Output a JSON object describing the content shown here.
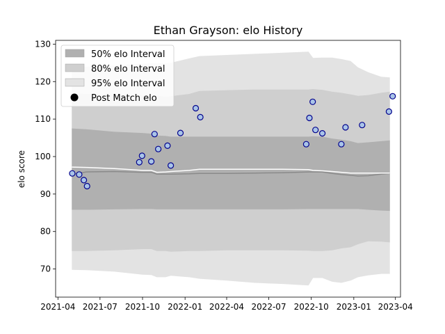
{
  "chart_data": {
    "type": "scatter",
    "title": "Ethan Grayson: elo History",
    "xlabel": "",
    "ylabel": "elo score",
    "xlim": [
      "2021-03-27",
      "2023-04-12"
    ],
    "ylim": [
      62.5,
      131
    ],
    "x_ticks": [
      "2021-04",
      "2021-07",
      "2021-10",
      "2022-01",
      "2022-04",
      "2022-07",
      "2022-10",
      "2023-01",
      "2023-04"
    ],
    "y_ticks": [
      70,
      80,
      90,
      100,
      110,
      120,
      130
    ],
    "grid": false,
    "legend_position": "top-left",
    "legend": [
      "50% elo Interval",
      "80% elo Interval",
      "95% elo Interval",
      "Post Match elo"
    ],
    "colors": {
      "band_50": "#b0b0b0",
      "band_80": "#cfcfcf",
      "band_95": "#e3e3e3",
      "mean_line": "#8a8a8a",
      "white_line": "#ffffff",
      "marker_face": "#a9c4e8",
      "marker_edge": "#00008b"
    },
    "interval_dates": [
      "2021-05-01",
      "2021-06-01",
      "2021-08-01",
      "2021-10-01",
      "2021-10-20",
      "2021-11-01",
      "2021-11-20",
      "2021-12-01",
      "2022-01-10",
      "2022-02-01",
      "2022-04-01",
      "2022-06-01",
      "2022-08-01",
      "2022-09-25",
      "2022-10-05",
      "2022-10-25",
      "2022-11-15",
      "2022-12-05",
      "2022-12-25",
      "2023-01-10",
      "2023-02-01",
      "2023-03-01",
      "2023-03-20"
    ],
    "mean": [
      95.2,
      95.9,
      96.0,
      95.8,
      95.8,
      95.3,
      95.3,
      95.3,
      95.4,
      95.5,
      95.5,
      95.6,
      95.7,
      95.9,
      95.9,
      95.9,
      95.5,
      95.2,
      95.0,
      94.8,
      94.9,
      95.3,
      95.5
    ],
    "white_line": [
      97.2,
      97.1,
      96.8,
      96.3,
      96.3,
      95.8,
      95.9,
      96.0,
      96.3,
      96.6,
      96.6,
      96.6,
      96.6,
      96.5,
      96.3,
      96.2,
      96.0,
      95.8,
      95.6,
      95.6,
      95.6,
      95.6,
      95.6
    ],
    "band_50": {
      "upper": [
        107.5,
        107.3,
        106.6,
        106.3,
        106.1,
        105.6,
        105.5,
        105.3,
        105.3,
        105.3,
        105.3,
        105.3,
        105.3,
        105.3,
        105.4,
        105.3,
        104.8,
        104.5,
        104.1,
        103.6,
        103.8,
        104.1,
        104.3
      ],
      "lower": [
        85.8,
        85.8,
        85.9,
        86.0,
        86.0,
        85.9,
        85.9,
        85.9,
        85.9,
        85.9,
        85.9,
        85.9,
        85.9,
        86.0,
        86.0,
        86.0,
        86.0,
        86.0,
        86.0,
        86.0,
        85.8,
        85.6,
        85.5
      ]
    },
    "band_80": {
      "upper": [
        116.8,
        116.7,
        116.5,
        116.3,
        116.3,
        116.2,
        116.0,
        116.1,
        116.7,
        117.5,
        117.7,
        117.9,
        117.9,
        117.9,
        118.0,
        117.8,
        117.3,
        117.0,
        116.6,
        116.2,
        116.4,
        117.0,
        117.3
      ],
      "lower": [
        74.8,
        74.8,
        75.0,
        75.3,
        75.3,
        74.8,
        74.8,
        74.6,
        74.8,
        74.8,
        75.0,
        75.0,
        75.0,
        74.9,
        74.8,
        74.8,
        75.0,
        75.5,
        75.8,
        76.6,
        77.4,
        77.3,
        77.1
      ]
    },
    "band_95": {
      "upper": [
        124.0,
        124.0,
        124.3,
        124.8,
        124.9,
        124.9,
        124.9,
        125.0,
        126.2,
        126.8,
        127.1,
        127.4,
        127.7,
        128.0,
        126.3,
        126.4,
        126.4,
        126.0,
        125.5,
        123.8,
        122.5,
        121.3,
        121.1
      ],
      "lower": [
        69.8,
        69.7,
        69.3,
        68.5,
        68.4,
        67.8,
        67.8,
        68.2,
        67.8,
        67.4,
        66.9,
        66.3,
        66.0,
        65.6,
        67.6,
        67.6,
        66.6,
        66.3,
        66.9,
        67.8,
        68.3,
        68.7,
        68.7
      ]
    },
    "post_match_elo": {
      "x": [
        "2021-05-02",
        "2021-05-17",
        "2021-05-27",
        "2021-06-03",
        "2021-09-24",
        "2021-09-30",
        "2021-10-20",
        "2021-10-27",
        "2021-11-04",
        "2021-11-24",
        "2021-12-01",
        "2021-12-22",
        "2022-01-24",
        "2022-02-03",
        "2022-09-20",
        "2022-09-27",
        "2022-10-04",
        "2022-10-10",
        "2022-10-25",
        "2022-12-05",
        "2022-12-14",
        "2023-01-19",
        "2023-03-18",
        "2023-03-26"
      ],
      "y": [
        95.5,
        95.2,
        93.7,
        92.1,
        98.5,
        100.2,
        98.7,
        106.0,
        102.0,
        102.9,
        97.6,
        106.3,
        112.9,
        110.5,
        103.3,
        110.3,
        114.6,
        107.1,
        106.2,
        103.3,
        107.8,
        108.4,
        112.0,
        116.1
      ]
    }
  }
}
